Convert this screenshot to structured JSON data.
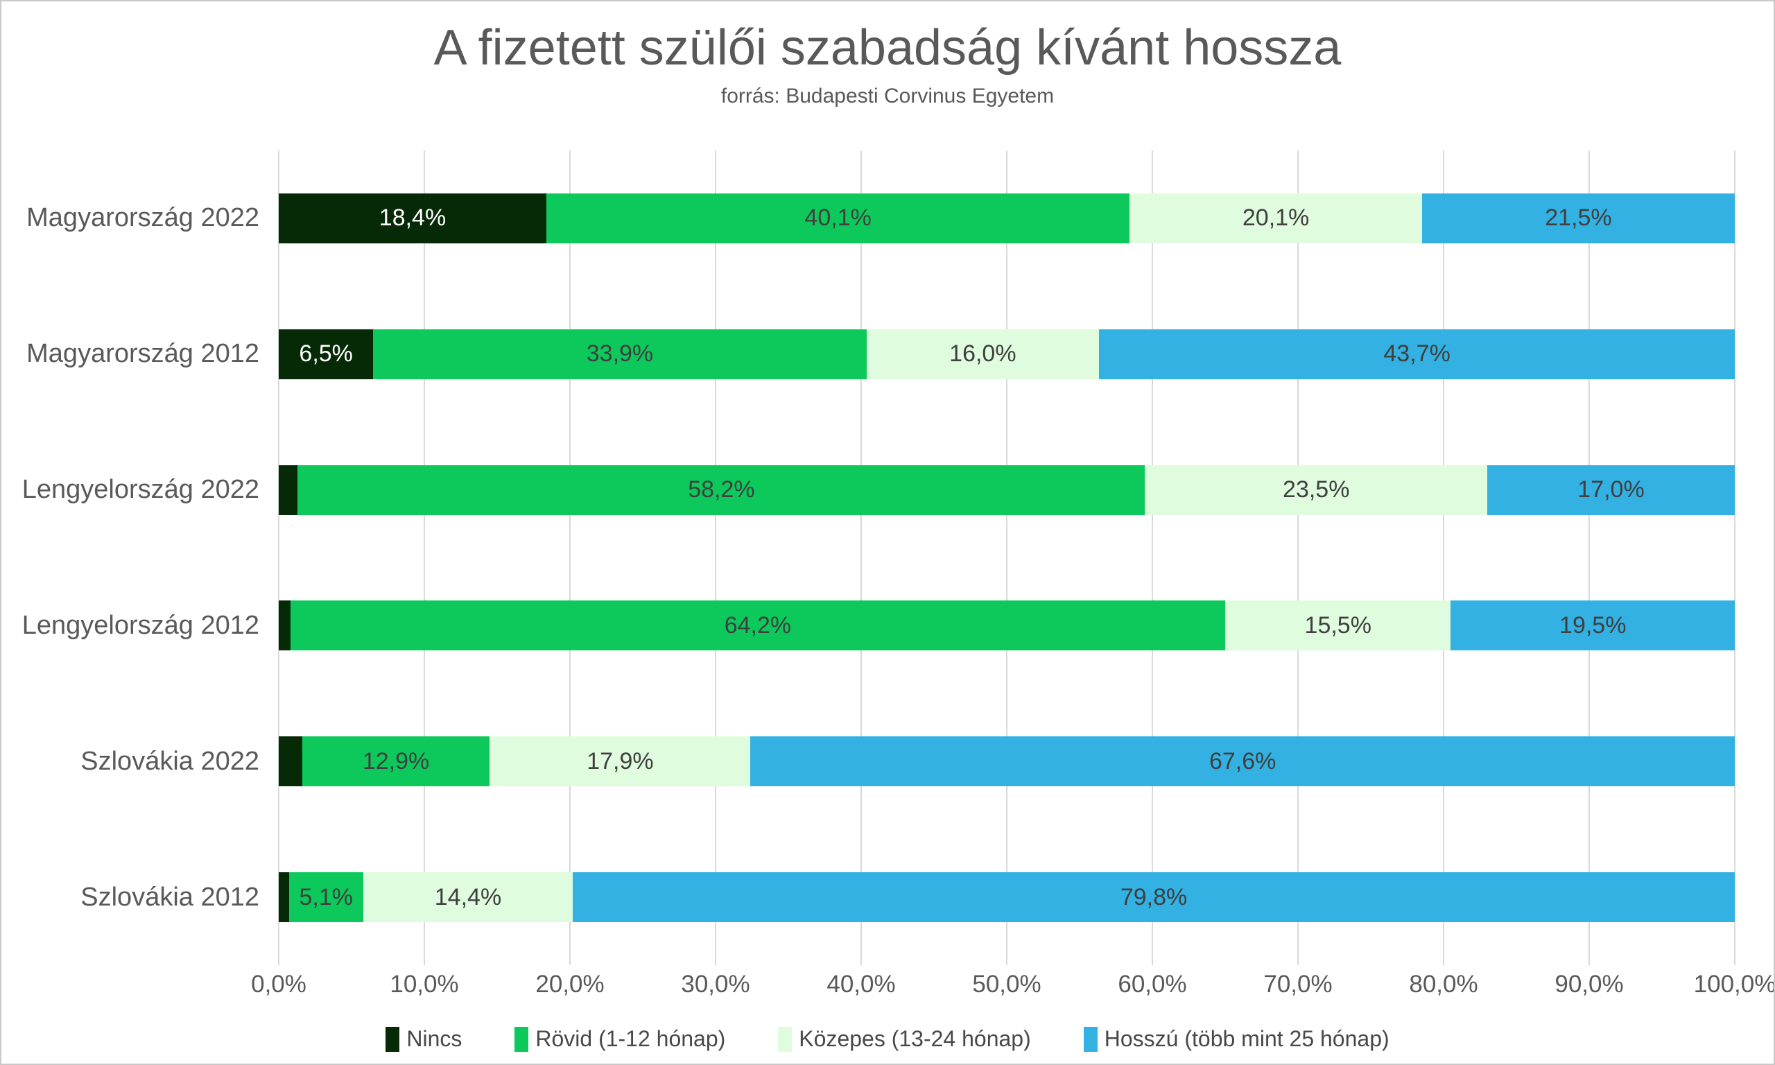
{
  "title": "A fizetett szülői szabadság kívánt hossza",
  "subtitle": "forrás: Budapesti Corvinus Egyetem",
  "colors": {
    "nincs": "#062906",
    "rovid": "#0dc95b",
    "kozepes": "#dffcde",
    "hosszu": "#33b1e3",
    "gridline": "#d9d9d9",
    "title_text": "#595959",
    "axis_text": "#595959",
    "data_label_dark": "#3f3f3f",
    "data_label_light": "#ffffff"
  },
  "chart_data": {
    "type": "bar",
    "orientation": "horizontal",
    "stacked": true,
    "title": "A fizetett szülői szabadság kívánt hossza",
    "subtitle": "forrás: Budapesti Corvinus Egyetem",
    "xlabel": "",
    "ylabel": "",
    "xlim": [
      0,
      100
    ],
    "grid": true,
    "legend_position": "bottom",
    "categories": [
      "Magyarország 2022",
      "Magyarország 2012",
      "Lengyelország 2022",
      "Lengyelország 2012",
      "Szlovákia 2022",
      "Szlovákia 2012"
    ],
    "series": [
      {
        "key": "nincs",
        "name": "Nincs",
        "color": "#062906",
        "label_color": "#ffffff",
        "values": [
          18.4,
          6.5,
          1.3,
          0.8,
          1.6,
          0.7
        ],
        "labels": [
          "18,4%",
          "6,5%",
          "",
          "",
          "",
          ""
        ]
      },
      {
        "key": "rovid",
        "name": "Rövid (1-12 hónap)",
        "color": "#0dc95b",
        "label_color": "#3f3f3f",
        "values": [
          40.1,
          33.9,
          58.2,
          64.2,
          12.9,
          5.1
        ],
        "labels": [
          "40,1%",
          "33,9%",
          "58,2%",
          "64,2%",
          "12,9%",
          "5,1%"
        ]
      },
      {
        "key": "kozepes",
        "name": "Közepes (13-24 hónap)",
        "color": "#dffcde",
        "label_color": "#3f3f3f",
        "values": [
          20.1,
          16.0,
          23.5,
          15.5,
          17.9,
          14.4
        ],
        "labels": [
          "20,1%",
          "16,0%",
          "23,5%",
          "15,5%",
          "17,9%",
          "14,4%"
        ]
      },
      {
        "key": "hosszu",
        "name": "Hosszú (több mint 25 hónap)",
        "color": "#33b1e3",
        "label_color": "#3f3f3f",
        "values": [
          21.5,
          43.7,
          17.0,
          19.5,
          67.6,
          79.8
        ],
        "labels": [
          "21,5%",
          "43,7%",
          "17,0%",
          "19,5%",
          "67,6%",
          "79,8%"
        ]
      }
    ],
    "x_axis": {
      "min": 0,
      "max": 100,
      "step": 10,
      "ticks": [
        "0,0%",
        "10,0%",
        "20,0%",
        "30,0%",
        "40,0%",
        "50,0%",
        "60,0%",
        "70,0%",
        "80,0%",
        "90,0%",
        "100,0%"
      ]
    }
  }
}
